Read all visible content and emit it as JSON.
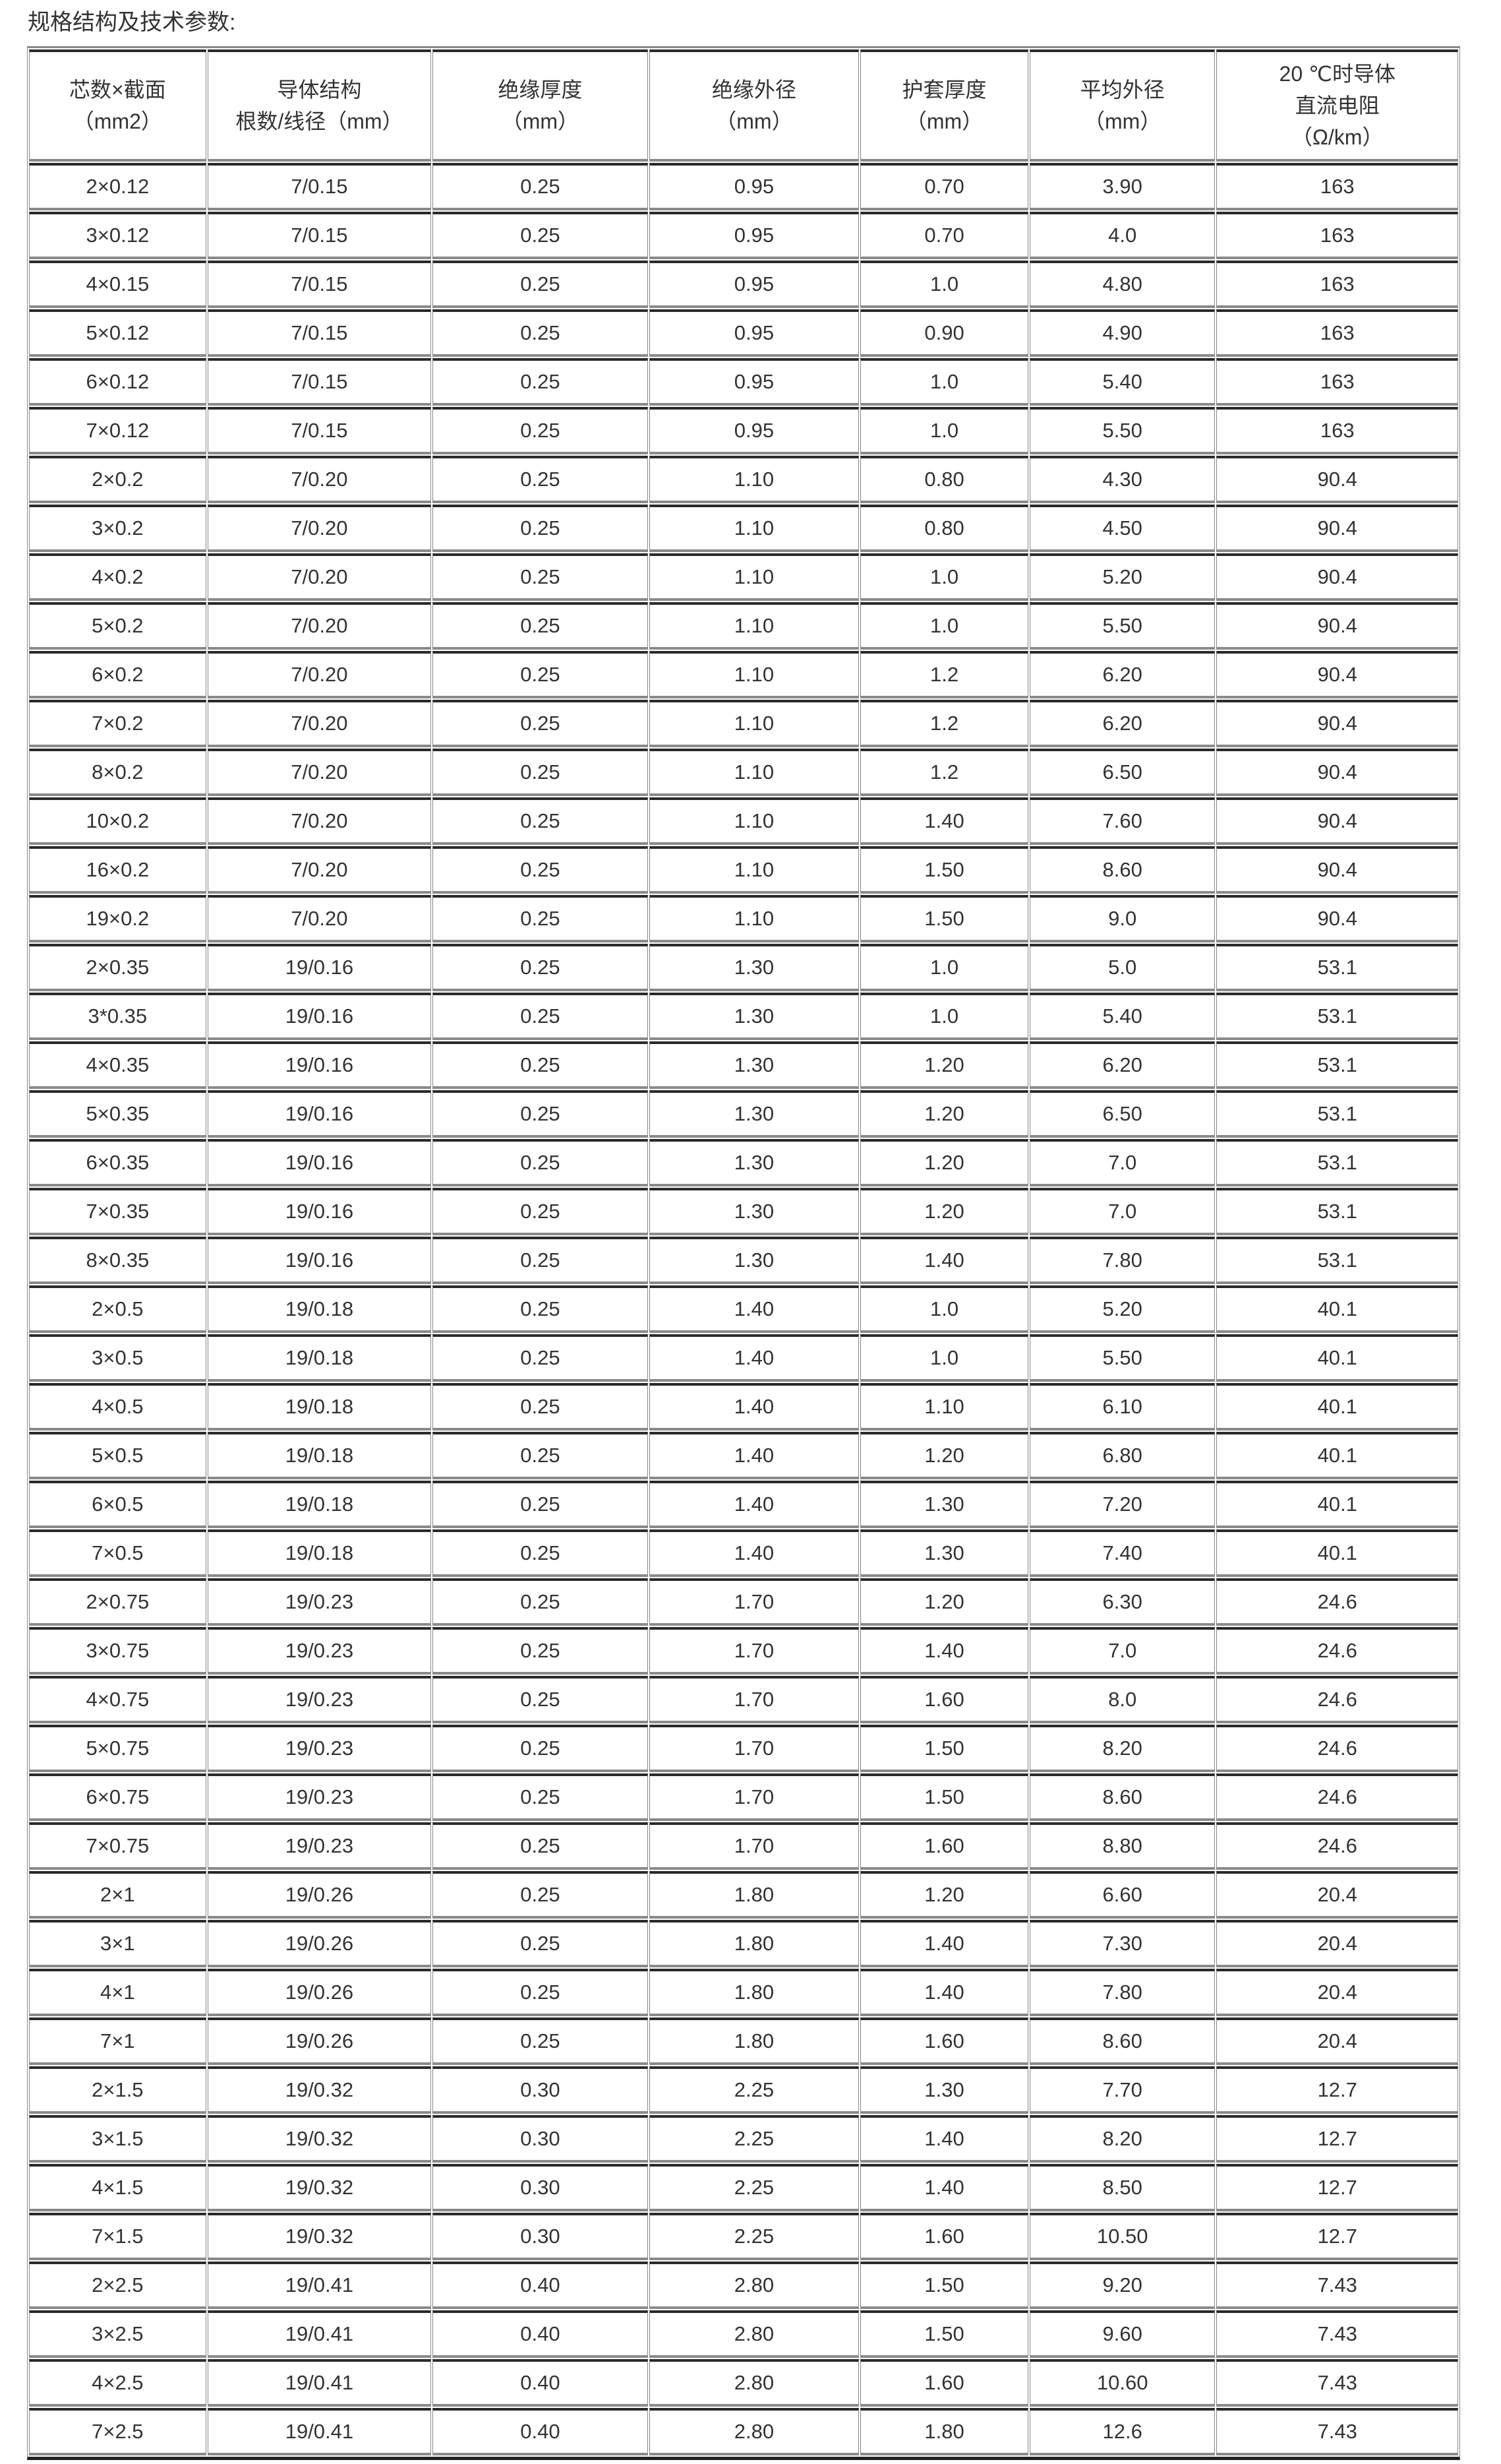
{
  "caption": "规格结构及技术参数:",
  "table": {
    "headers": [
      [
        "芯数×截面",
        "（mm2）"
      ],
      [
        "导体结构",
        "根数/线径（mm）"
      ],
      [
        "绝缘厚度",
        "（mm）"
      ],
      [
        "绝缘外径",
        "（mm）"
      ],
      [
        "护套厚度",
        "（mm）"
      ],
      [
        "平均外径",
        "（mm）"
      ],
      [
        "20 ℃时导体",
        "直流电阻",
        "（Ω/km）"
      ]
    ],
    "rows": [
      [
        "2×0.12",
        "7/0.15",
        "0.25",
        "0.95",
        "0.70",
        "3.90",
        "163"
      ],
      [
        "3×0.12",
        "7/0.15",
        "0.25",
        "0.95",
        "0.70",
        "4.0",
        "163"
      ],
      [
        "4×0.15",
        "7/0.15",
        "0.25",
        "0.95",
        "1.0",
        "4.80",
        "163"
      ],
      [
        "5×0.12",
        "7/0.15",
        "0.25",
        "0.95",
        "0.90",
        "4.90",
        "163"
      ],
      [
        "6×0.12",
        "7/0.15",
        "0.25",
        "0.95",
        "1.0",
        "5.40",
        "163"
      ],
      [
        "7×0.12",
        "7/0.15",
        "0.25",
        "0.95",
        "1.0",
        "5.50",
        "163"
      ],
      [
        "2×0.2",
        "7/0.20",
        "0.25",
        "1.10",
        "0.80",
        "4.30",
        "90.4"
      ],
      [
        "3×0.2",
        "7/0.20",
        "0.25",
        "1.10",
        "0.80",
        "4.50",
        "90.4"
      ],
      [
        "4×0.2",
        "7/0.20",
        "0.25",
        "1.10",
        "1.0",
        "5.20",
        "90.4"
      ],
      [
        "5×0.2",
        "7/0.20",
        "0.25",
        "1.10",
        "1.0",
        "5.50",
        "90.4"
      ],
      [
        "6×0.2",
        "7/0.20",
        "0.25",
        "1.10",
        "1.2",
        "6.20",
        "90.4"
      ],
      [
        "7×0.2",
        "7/0.20",
        "0.25",
        "1.10",
        "1.2",
        "6.20",
        "90.4"
      ],
      [
        "8×0.2",
        "7/0.20",
        "0.25",
        "1.10",
        "1.2",
        "6.50",
        "90.4"
      ],
      [
        "10×0.2",
        "7/0.20",
        "0.25",
        "1.10",
        "1.40",
        "7.60",
        "90.4"
      ],
      [
        "16×0.2",
        "7/0.20",
        "0.25",
        "1.10",
        "1.50",
        "8.60",
        "90.4"
      ],
      [
        "19×0.2",
        "7/0.20",
        "0.25",
        "1.10",
        "1.50",
        "9.0",
        "90.4"
      ],
      [
        "2×0.35",
        "19/0.16",
        "0.25",
        "1.30",
        "1.0",
        "5.0",
        "53.1"
      ],
      [
        "3*0.35",
        "19/0.16",
        "0.25",
        "1.30",
        "1.0",
        "5.40",
        "53.1"
      ],
      [
        "4×0.35",
        "19/0.16",
        "0.25",
        "1.30",
        "1.20",
        "6.20",
        "53.1"
      ],
      [
        "5×0.35",
        "19/0.16",
        "0.25",
        "1.30",
        "1.20",
        "6.50",
        "53.1"
      ],
      [
        "6×0.35",
        "19/0.16",
        "0.25",
        "1.30",
        "1.20",
        "7.0",
        "53.1"
      ],
      [
        "7×0.35",
        "19/0.16",
        "0.25",
        "1.30",
        "1.20",
        "7.0",
        "53.1"
      ],
      [
        "8×0.35",
        "19/0.16",
        "0.25",
        "1.30",
        "1.40",
        "7.80",
        "53.1"
      ],
      [
        "2×0.5",
        "19/0.18",
        "0.25",
        "1.40",
        "1.0",
        "5.20",
        "40.1"
      ],
      [
        "3×0.5",
        "19/0.18",
        "0.25",
        "1.40",
        "1.0",
        "5.50",
        "40.1"
      ],
      [
        "4×0.5",
        "19/0.18",
        "0.25",
        "1.40",
        "1.10",
        "6.10",
        "40.1"
      ],
      [
        "5×0.5",
        "19/0.18",
        "0.25",
        "1.40",
        "1.20",
        "6.80",
        "40.1"
      ],
      [
        "6×0.5",
        "19/0.18",
        "0.25",
        "1.40",
        "1.30",
        "7.20",
        "40.1"
      ],
      [
        "7×0.5",
        "19/0.18",
        "0.25",
        "1.40",
        "1.30",
        "7.40",
        "40.1"
      ],
      [
        "2×0.75",
        "19/0.23",
        "0.25",
        "1.70",
        "1.20",
        "6.30",
        "24.6"
      ],
      [
        "3×0.75",
        "19/0.23",
        "0.25",
        "1.70",
        "1.40",
        "7.0",
        "24.6"
      ],
      [
        "4×0.75",
        "19/0.23",
        "0.25",
        "1.70",
        "1.60",
        "8.0",
        "24.6"
      ],
      [
        "5×0.75",
        "19/0.23",
        "0.25",
        "1.70",
        "1.50",
        "8.20",
        "24.6"
      ],
      [
        "6×0.75",
        "19/0.23",
        "0.25",
        "1.70",
        "1.50",
        "8.60",
        "24.6"
      ],
      [
        "7×0.75",
        "19/0.23",
        "0.25",
        "1.70",
        "1.60",
        "8.80",
        "24.6"
      ],
      [
        "2×1",
        "19/0.26",
        "0.25",
        "1.80",
        "1.20",
        "6.60",
        "20.4"
      ],
      [
        "3×1",
        "19/0.26",
        "0.25",
        "1.80",
        "1.40",
        "7.30",
        "20.4"
      ],
      [
        "4×1",
        "19/0.26",
        "0.25",
        "1.80",
        "1.40",
        "7.80",
        "20.4"
      ],
      [
        "7×1",
        "19/0.26",
        "0.25",
        "1.80",
        "1.60",
        "8.60",
        "20.4"
      ],
      [
        "2×1.5",
        "19/0.32",
        "0.30",
        "2.25",
        "1.30",
        "7.70",
        "12.7"
      ],
      [
        "3×1.5",
        "19/0.32",
        "0.30",
        "2.25",
        "1.40",
        "8.20",
        "12.7"
      ],
      [
        "4×1.5",
        "19/0.32",
        "0.30",
        "2.25",
        "1.40",
        "8.50",
        "12.7"
      ],
      [
        "7×1.5",
        "19/0.32",
        "0.30",
        "2.25",
        "1.60",
        "10.50",
        "12.7"
      ],
      [
        "2×2.5",
        "19/0.41",
        "0.40",
        "2.80",
        "1.50",
        "9.20",
        "7.43"
      ],
      [
        "3×2.5",
        "19/0.41",
        "0.40",
        "2.80",
        "1.50",
        "9.60",
        "7.43"
      ],
      [
        "4×2.5",
        "19/0.41",
        "0.40",
        "2.80",
        "1.60",
        "10.60",
        "7.43"
      ],
      [
        "7×2.5",
        "19/0.41",
        "0.40",
        "2.80",
        "1.80",
        "12.6",
        "7.43"
      ]
    ]
  }
}
